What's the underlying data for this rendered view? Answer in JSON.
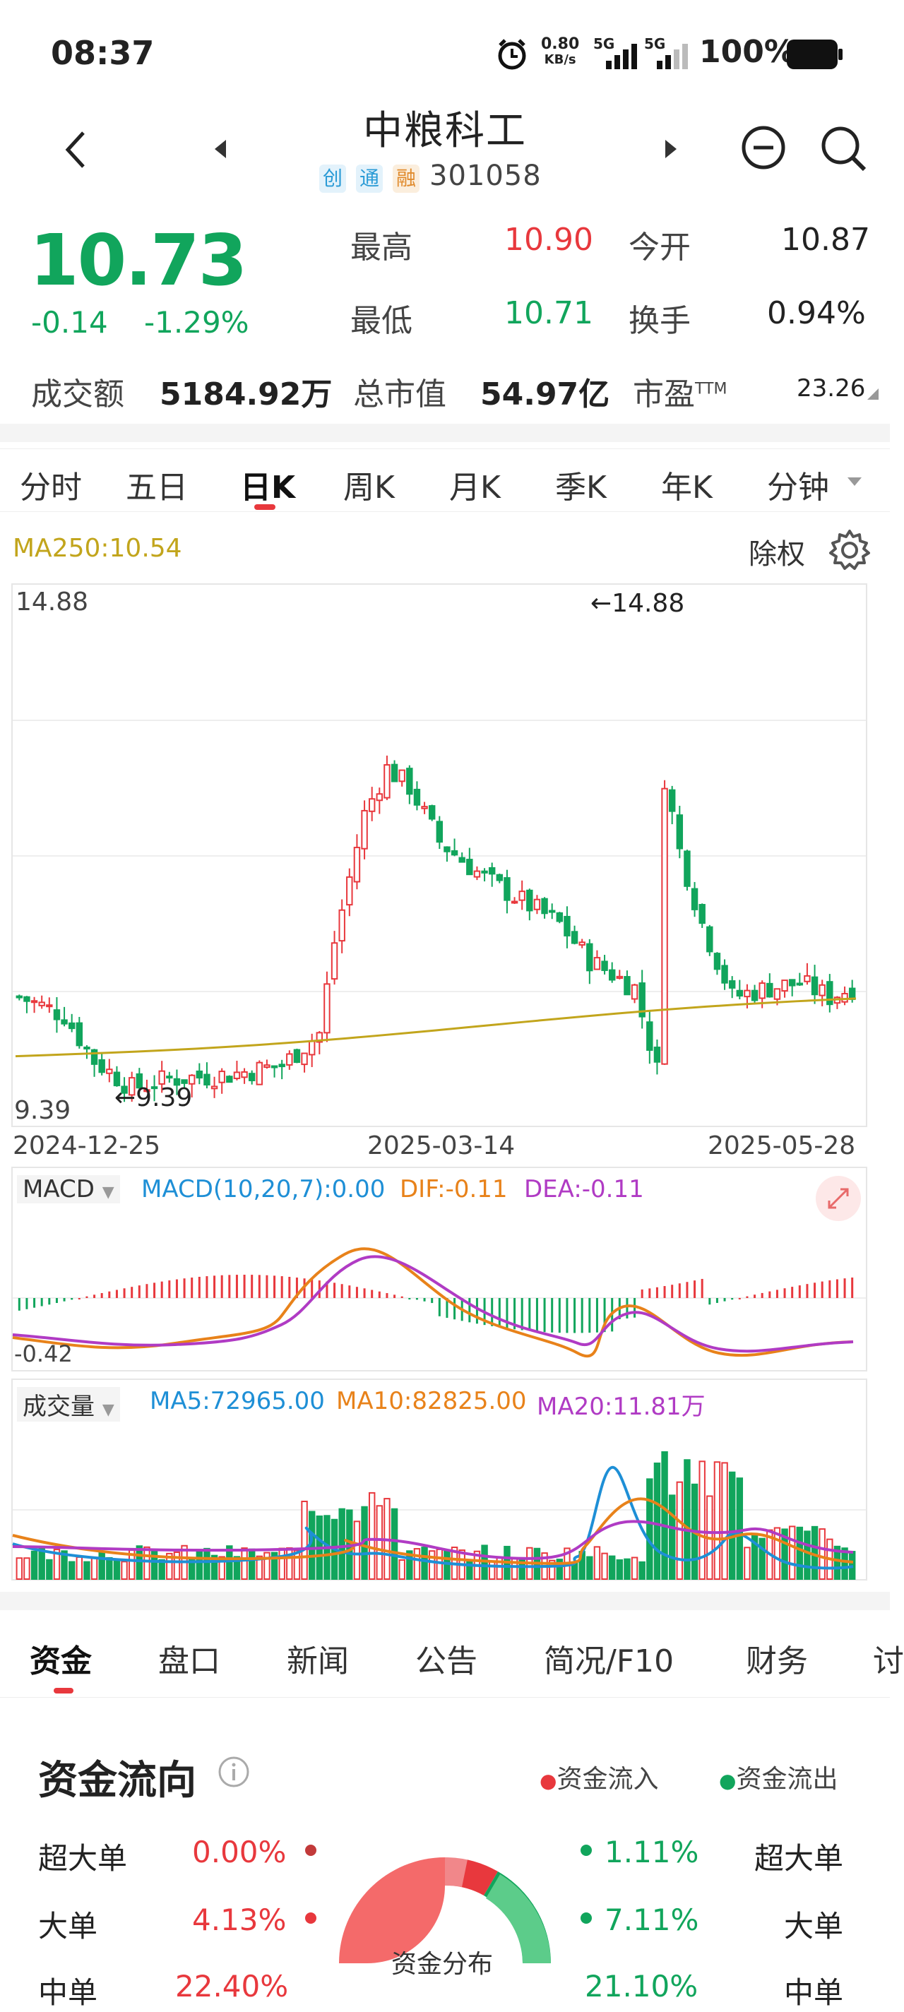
{
  "status": {
    "time": "08:37",
    "net_speed": "0.80",
    "net_unit": "KB/s",
    "sig1": "5G",
    "sig2": "5G",
    "battery": "100%"
  },
  "header": {
    "name": "中粮科工",
    "badges": [
      "创",
      "通",
      "融"
    ],
    "code": "301058"
  },
  "quote": {
    "price": "10.73",
    "change": "-0.14",
    "change_pct": "-1.29%",
    "high_label": "最高",
    "high": "10.90",
    "open_label": "今开",
    "open": "10.87",
    "low_label": "最低",
    "low": "10.71",
    "turnover_label": "换手",
    "turnover": "0.94%",
    "amount_label": "成交额",
    "amount": "5184.92万",
    "mcap_label": "总市值",
    "mcap": "54.97亿",
    "pe_label": "市盈",
    "pe_sup": "TTM",
    "pe": "23.26"
  },
  "period_tabs": [
    "分时",
    "五日",
    "日K",
    "周K",
    "月K",
    "季K",
    "年K",
    "分钟"
  ],
  "active_tab": "日K",
  "ma250": "MA250:10.54",
  "fuquan": "除权",
  "kline": {
    "max_label": "14.88",
    "min_label": "9.39",
    "max_mark": "←14.88",
    "min_mark": "←9.39",
    "dates": [
      "2024-12-25",
      "2025-03-14",
      "2025-05-28"
    ]
  },
  "macd": {
    "name": "MACD",
    "params": "MACD(10,20,7):0.00",
    "dif": "DIF:-0.11",
    "dea": "DEA:-0.11",
    "low_label": "-0.42"
  },
  "volume": {
    "name": "成交量",
    "ma5": "MA5:72965.00",
    "ma10": "MA10:82825.00",
    "ma20": "MA20:11.81万"
  },
  "section_tabs": [
    "资金",
    "盘口",
    "新闻",
    "公告",
    "简况/F10",
    "财务",
    "讨"
  ],
  "fund": {
    "title": "资金流向",
    "legend_in": "资金流入",
    "legend_out": "资金流出",
    "donut_label": "资金分布",
    "rows": [
      {
        "label": "超大单",
        "in": "0.00%",
        "out": "1.11%"
      },
      {
        "label": "大单",
        "in": "4.13%",
        "out": "7.11%"
      },
      {
        "label": "中单",
        "in": "22.40%",
        "out": "21.10%"
      }
    ]
  },
  "colors": {
    "up": "#e8383d",
    "down": "#11a55c",
    "ma250": "#c2a51c",
    "dif": "#e8821a",
    "dea": "#b03bc4",
    "ma5": "#1e8fd6"
  }
}
